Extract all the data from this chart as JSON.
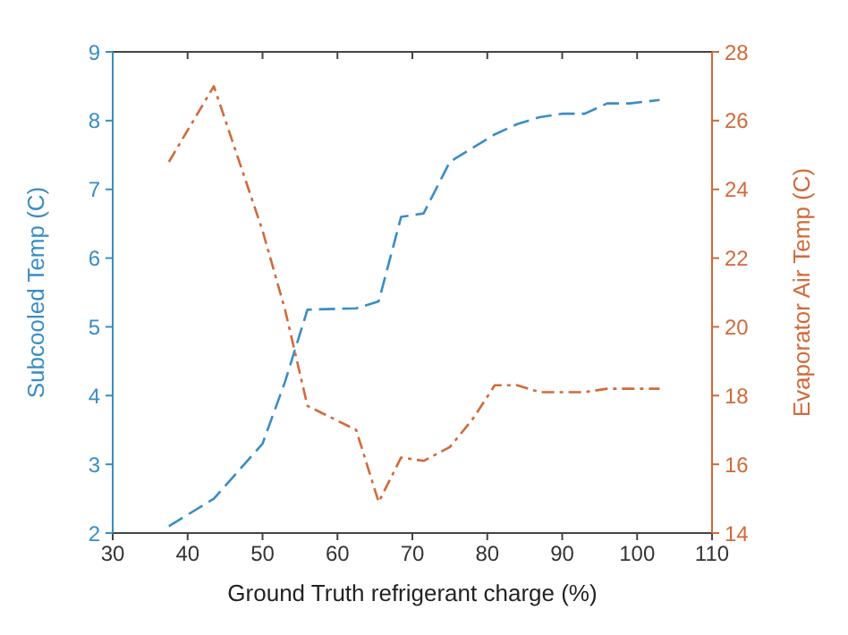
{
  "chart_data": {
    "type": "line",
    "xlabel": "Ground Truth refrigerant charge (%)",
    "ylabel": "Subcooled Temp (C)",
    "y2label": "Evaporator Air Temp (C)",
    "x": [
      37.5,
      43.5,
      50,
      53,
      56,
      62.5,
      65.5,
      68.5,
      71.5,
      75,
      78,
      81,
      84,
      87,
      90,
      93,
      96,
      99,
      103
    ],
    "series": [
      {
        "color": "#3a8dc4",
        "line_style": "dashed",
        "values": [
          2.1,
          2.5,
          3.3,
          4.2,
          5.25,
          5.27,
          5.37,
          6.6,
          6.65,
          7.4,
          7.6,
          7.8,
          7.95,
          8.05,
          8.1,
          8.1,
          8.25,
          8.25,
          8.3
        ]
      },
      {
        "color": "#d2693a",
        "line_style": "dotted",
        "axis": "y2",
        "values": [
          24.8,
          27.0,
          22.8,
          20.5,
          17.7,
          17.0,
          14.9,
          16.2,
          16.1,
          16.5,
          17.3,
          18.3,
          18.3,
          18.1,
          18.1,
          18.1,
          18.2,
          18.2,
          18.2
        ]
      }
    ],
    "xlim": [
      30,
      110
    ],
    "xticks": [
      30,
      40,
      50,
      60,
      70,
      80,
      90,
      100,
      110
    ],
    "ylim": [
      2,
      9
    ],
    "yticks": [
      2,
      3,
      4,
      5,
      6,
      7,
      8,
      9
    ],
    "y2lim": [
      14,
      28
    ],
    "y2ticks": [
      14,
      16,
      18,
      20,
      22,
      24,
      26,
      28
    ],
    "grid": false,
    "legend": false,
    "marker": "none"
  }
}
